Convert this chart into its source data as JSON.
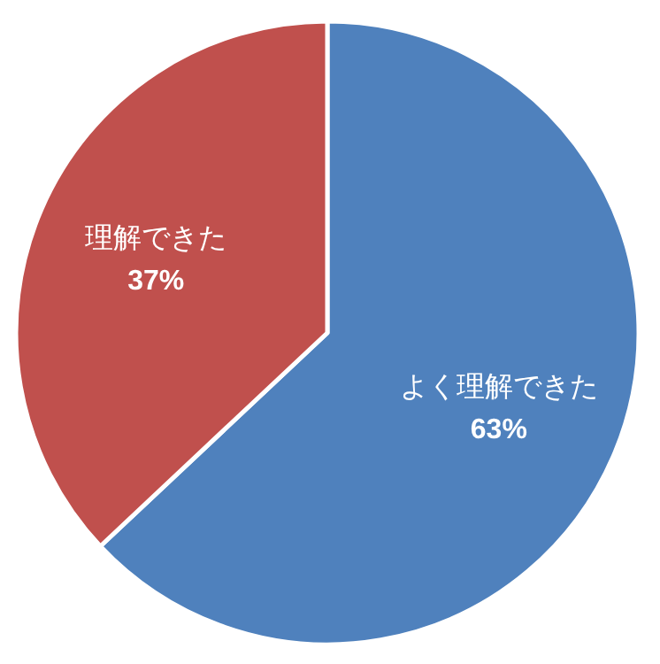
{
  "chart_data": {
    "type": "pie",
    "categories": [
      "よく理解できた",
      "理解できた"
    ],
    "values": [
      63,
      37
    ],
    "colors": [
      "#4f81bd",
      "#c0504d"
    ],
    "value_labels": [
      "63%",
      "37%"
    ]
  }
}
